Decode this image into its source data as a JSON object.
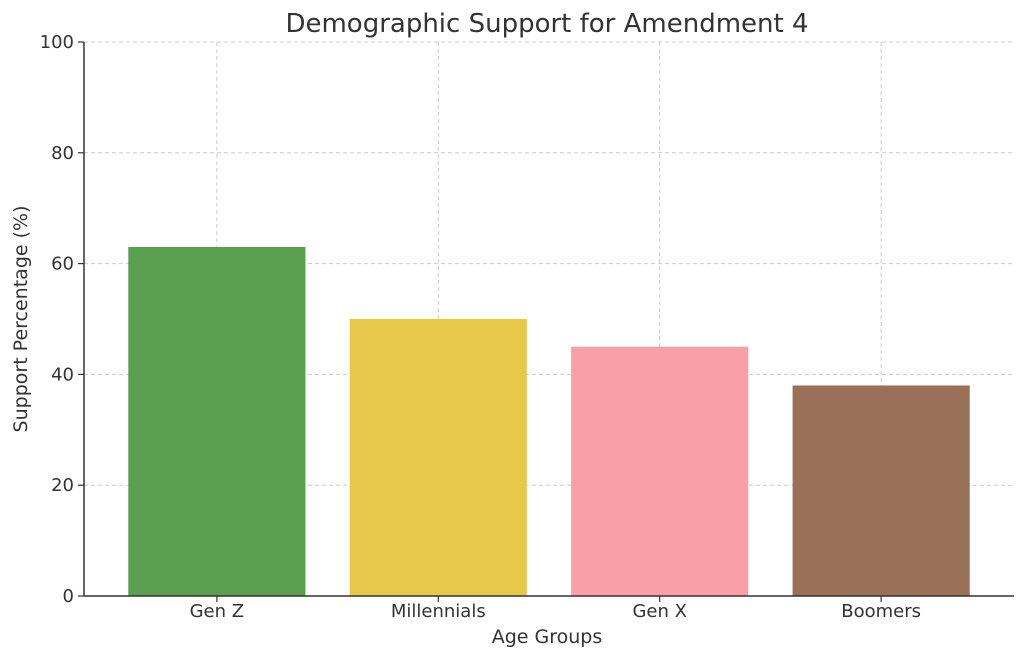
{
  "chart_data": {
    "type": "bar",
    "title": "Demographic Support for Amendment 4",
    "xlabel": "Age Groups",
    "ylabel": "Support Percentage (%)",
    "categories": [
      "Gen Z",
      "Millennials",
      "Gen X",
      "Boomers"
    ],
    "values": [
      63,
      50,
      45,
      38
    ],
    "colors": [
      "#5a9e4f",
      "#e8c84a",
      "#f99fa8",
      "#9a7059"
    ],
    "ylim": [
      0,
      100
    ],
    "yticks": [
      0,
      20,
      40,
      60,
      80,
      100
    ],
    "grid": true
  }
}
